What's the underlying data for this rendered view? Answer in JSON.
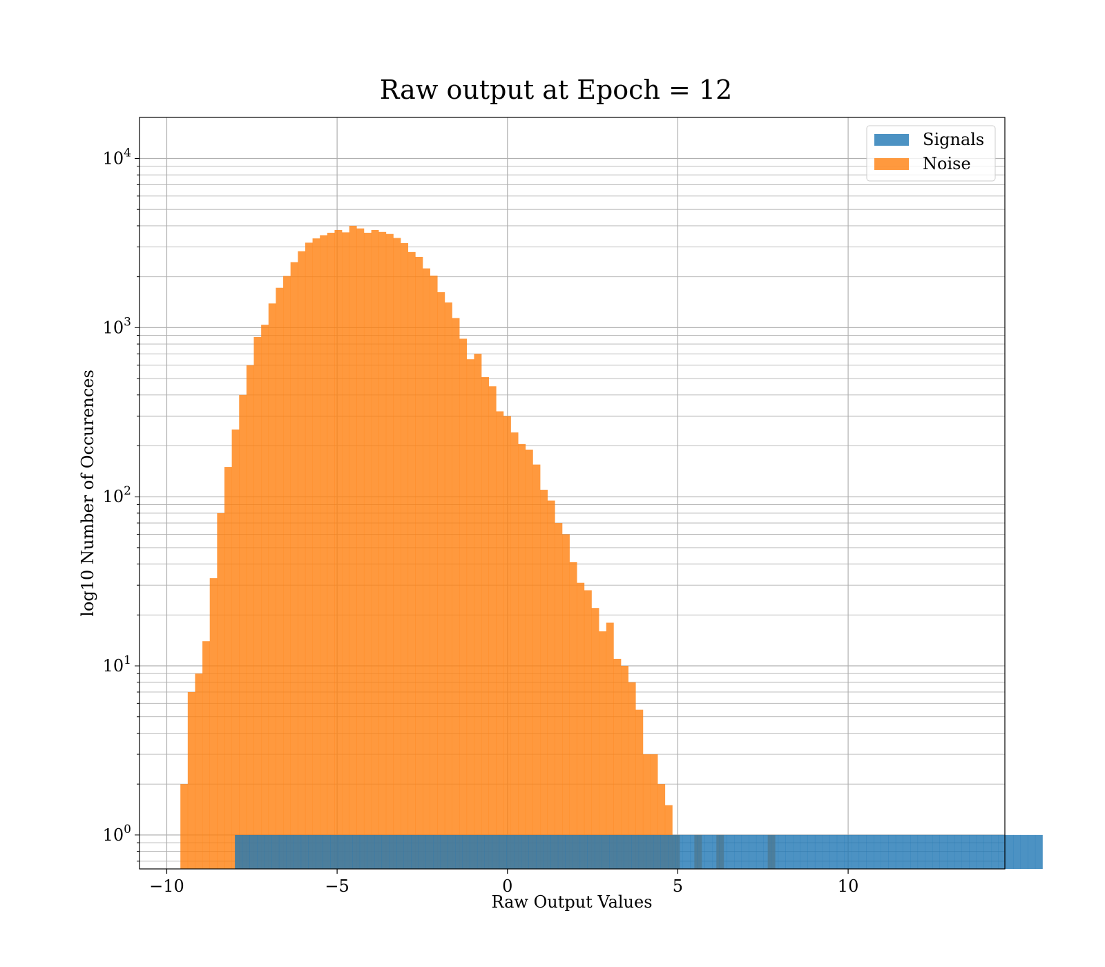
{
  "chart_data": {
    "type": "bar",
    "subtype": "overlaid-histogram",
    "title": "Raw output at Epoch = 12",
    "xlabel": "Raw Output Values",
    "ylabel": "log10 Number of Occurences",
    "xlim": [
      -10.8,
      14.6
    ],
    "ylim": [
      0.63,
      17500
    ],
    "yscale": "log",
    "grid": true,
    "legend_position": "top-right",
    "x_ticks": [
      {
        "value": -10,
        "label": "−10"
      },
      {
        "value": -5,
        "label": "−5"
      },
      {
        "value": 0,
        "label": "0"
      },
      {
        "value": 5,
        "label": "5"
      },
      {
        "value": 10,
        "label": "10"
      }
    ],
    "y_ticks": [
      {
        "value": 1,
        "base": "10",
        "exp": "0"
      },
      {
        "value": 10,
        "base": "10",
        "exp": "1"
      },
      {
        "value": 100,
        "base": "10",
        "exp": "2"
      },
      {
        "value": 1000,
        "base": "10",
        "exp": "3"
      },
      {
        "value": 10000,
        "base": "10",
        "exp": "4"
      }
    ],
    "series": [
      {
        "name": "Signals",
        "color": "#1f77b4",
        "opacity": 0.8,
        "bin_start": -8.0,
        "bin_width": 0.2155,
        "values": [
          1,
          1,
          1,
          1,
          1,
          1,
          1,
          1,
          1,
          1,
          1,
          1,
          1,
          1,
          1,
          1,
          1,
          1,
          1,
          1,
          1,
          1,
          1,
          1,
          1,
          1,
          1,
          1,
          1,
          1,
          1,
          1,
          1,
          1,
          1,
          1,
          1,
          1,
          1,
          1,
          1,
          1,
          1,
          1,
          1,
          1,
          1,
          1,
          1,
          1,
          1,
          1,
          1,
          1,
          1,
          1,
          1,
          1,
          1,
          1,
          1,
          1,
          1,
          1,
          1,
          1,
          1,
          1,
          1,
          1,
          1,
          1,
          1,
          1,
          1,
          1,
          1,
          1,
          1,
          1,
          1,
          1,
          1,
          1,
          1,
          1,
          1,
          1,
          1,
          1,
          1,
          1,
          1,
          1,
          1,
          1,
          1,
          1,
          1,
          1,
          1,
          1,
          1,
          1,
          1,
          1,
          1,
          1,
          1,
          1
        ]
      },
      {
        "name": "Noise",
        "color": "#ff7f0e",
        "opacity": 0.8,
        "bin_start": -9.6,
        "bin_width": 0.2155,
        "values": [
          2,
          7,
          9,
          14,
          33,
          80,
          150,
          250,
          400,
          600,
          880,
          1040,
          1390,
          1720,
          2020,
          2440,
          2830,
          3180,
          3370,
          3520,
          3640,
          3780,
          3660,
          4000,
          3860,
          3640,
          3780,
          3680,
          3580,
          3390,
          3160,
          2800,
          2620,
          2240,
          2030,
          1620,
          1410,
          1140,
          860,
          650,
          700,
          510,
          450,
          320,
          300,
          240,
          205,
          190,
          155,
          110,
          95,
          70,
          60,
          41,
          31,
          28,
          22,
          16,
          18,
          11,
          10,
          8,
          5.5,
          3,
          3,
          2,
          1.5,
          1,
          0,
          0,
          1,
          0,
          0,
          1,
          0,
          0,
          0,
          0,
          0,
          0,
          1,
          0,
          0,
          0,
          0,
          0,
          0,
          0,
          0,
          0,
          0,
          0,
          0,
          0,
          0,
          0,
          0,
          0,
          0,
          0,
          0,
          0,
          0,
          0,
          0,
          0,
          0,
          0,
          0,
          0,
          0
        ]
      }
    ]
  }
}
